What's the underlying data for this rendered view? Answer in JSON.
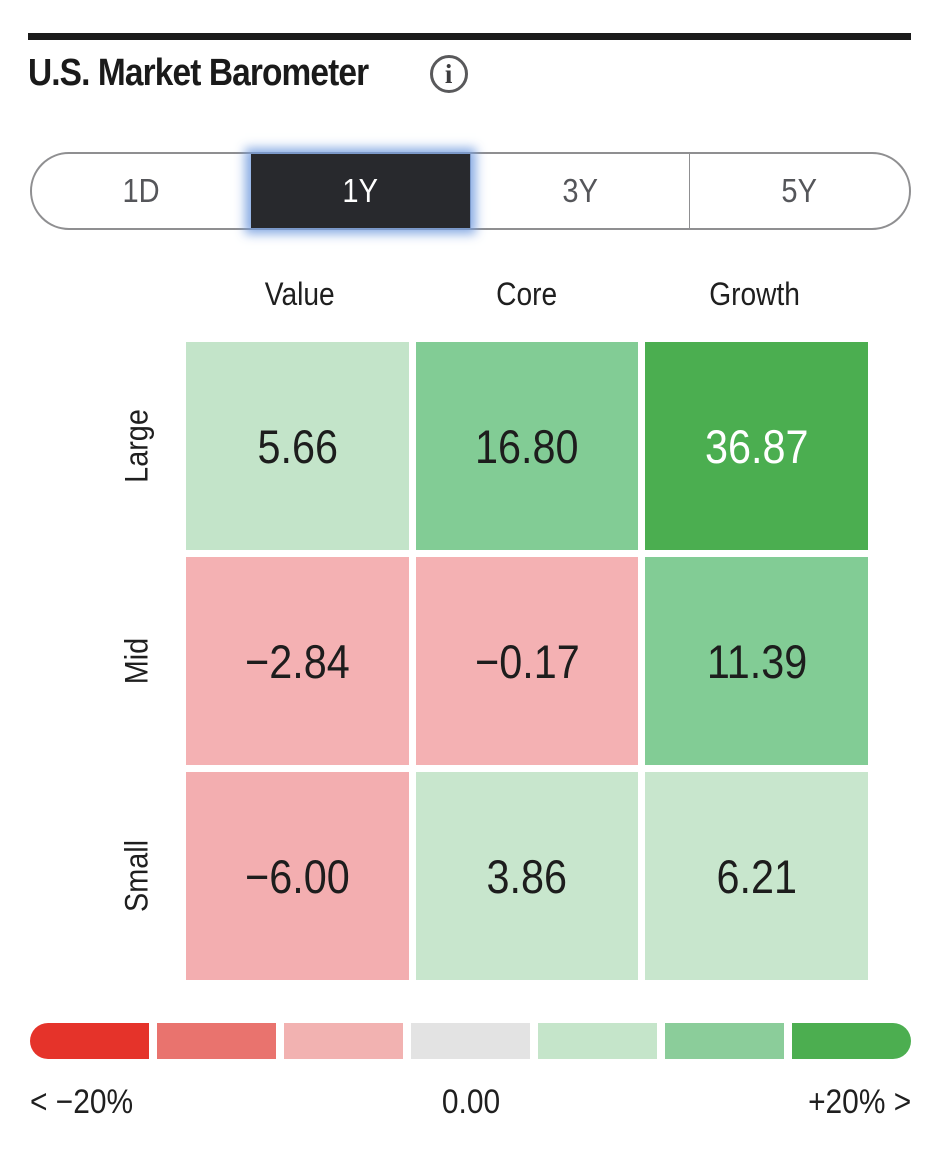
{
  "header": {
    "title": "U.S. Market Barometer",
    "info_icon_glyph": "i"
  },
  "period_selector": {
    "options": [
      {
        "label": "1D",
        "selected": false
      },
      {
        "label": "1Y",
        "selected": true
      },
      {
        "label": "3Y",
        "selected": false
      },
      {
        "label": "5Y",
        "selected": false
      }
    ]
  },
  "chart_data": {
    "type": "heatmap",
    "title": "U.S. Market Barometer",
    "selected_period": "1Y",
    "columns": [
      "Value",
      "Core",
      "Growth"
    ],
    "rows": [
      "Large",
      "Mid",
      "Small"
    ],
    "unit": "percent return",
    "values": [
      [
        5.66,
        16.8,
        36.87
      ],
      [
        -2.84,
        -0.17,
        11.39
      ],
      [
        -6.0,
        3.86,
        6.21
      ]
    ],
    "cells": [
      [
        {
          "display": "5.66",
          "bg": "#c3e4c9",
          "fg": "#1d1d1d"
        },
        {
          "display": "16.80",
          "bg": "#82cc95",
          "fg": "#1d1d1d"
        },
        {
          "display": "36.87",
          "bg": "#4bae50",
          "fg": "#ffffff"
        }
      ],
      [
        {
          "display": "−2.84",
          "bg": "#f4b1b3",
          "fg": "#1d1d1d"
        },
        {
          "display": "−0.17",
          "bg": "#f4b1b3",
          "fg": "#1d1d1d"
        },
        {
          "display": "11.39",
          "bg": "#82cc95",
          "fg": "#1d1d1d"
        }
      ],
      [
        {
          "display": "−6.00",
          "bg": "#f3aeb0",
          "fg": "#1d1d1d"
        },
        {
          "display": "3.86",
          "bg": "#c8e6cd",
          "fg": "#1d1d1d"
        },
        {
          "display": "6.21",
          "bg": "#c8e6cd",
          "fg": "#1d1d1d"
        }
      ]
    ],
    "legend": {
      "range": [
        -20,
        20
      ],
      "colors": [
        "#e5332a",
        "#e9736e",
        "#f2b2b1",
        "#e3e3e3",
        "#c5e5ca",
        "#8bcd9a",
        "#4cae50"
      ],
      "min_label": "< −20%",
      "mid_label": "0.00",
      "max_label": "+20% >"
    }
  }
}
